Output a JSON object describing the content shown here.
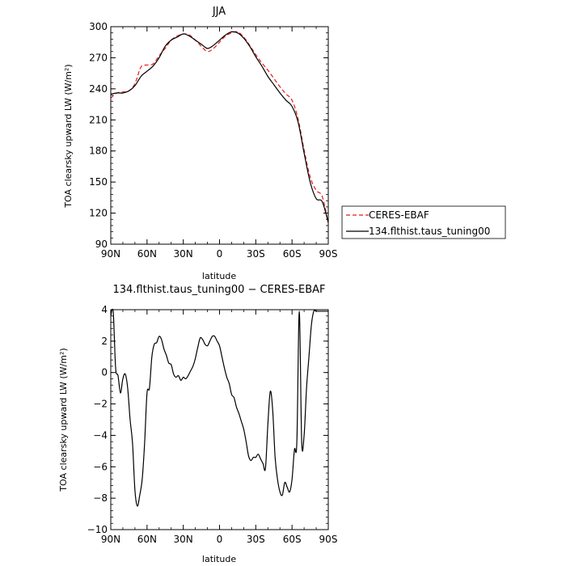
{
  "chart_data": [
    {
      "type": "line",
      "title": "JJA",
      "xlabel": "latitude",
      "ylabel": "TOA clearsky upward LW (W/m²)",
      "x_ticks": [
        {
          "lat": 90,
          "label": "90N"
        },
        {
          "lat": 60,
          "label": "60N"
        },
        {
          "lat": 30,
          "label": "30N"
        },
        {
          "lat": 0,
          "label": "0"
        },
        {
          "lat": -30,
          "label": "30S"
        },
        {
          "lat": -60,
          "label": "60S"
        },
        {
          "lat": -90,
          "label": "90S"
        }
      ],
      "y_ticks": [
        90,
        120,
        150,
        180,
        210,
        240,
        270,
        300
      ],
      "ylim": [
        90,
        300
      ],
      "xlim": [
        90,
        -90
      ],
      "legend": {
        "position": "right-outside"
      },
      "series": [
        {
          "name": "CERES-EBAF",
          "color": "#e8191c",
          "dash": "dashed",
          "lat": [
            90,
            85,
            80,
            75,
            70,
            65,
            60,
            55,
            50,
            45,
            40,
            35,
            30,
            25,
            20,
            15,
            10,
            5,
            0,
            -5,
            -10,
            -15,
            -20,
            -25,
            -30,
            -35,
            -40,
            -45,
            -50,
            -55,
            -60,
            -65,
            -70,
            -75,
            -80,
            -85,
            -90
          ],
          "values": [
            231,
            236,
            237,
            238,
            245,
            261,
            263,
            264,
            272,
            279,
            287,
            291,
            293,
            292,
            287,
            281,
            276,
            279,
            285,
            291,
            294,
            295,
            290,
            282,
            273,
            265,
            258,
            250,
            242,
            235,
            229,
            211,
            181,
            155,
            142,
            136,
            110
          ]
        },
        {
          "name": "134.flthist.taus_tuning00",
          "color": "#000000",
          "dash": "solid",
          "lat": [
            90,
            85,
            80,
            75,
            70,
            65,
            60,
            55,
            50,
            45,
            40,
            35,
            30,
            25,
            20,
            15,
            10,
            5,
            0,
            -5,
            -10,
            -15,
            -20,
            -25,
            -30,
            -35,
            -40,
            -45,
            -50,
            -55,
            -60,
            -65,
            -70,
            -75,
            -80,
            -85,
            -90
          ],
          "values": [
            235,
            236,
            236,
            238,
            243,
            252,
            257,
            262,
            270,
            281,
            287,
            290,
            293,
            291,
            287,
            283,
            279,
            282,
            287,
            292,
            295,
            294,
            289,
            281,
            271,
            262,
            252,
            244,
            236,
            229,
            223,
            208,
            178,
            150,
            134,
            131,
            111
          ]
        }
      ]
    },
    {
      "type": "line",
      "title": "134.flthist.taus_tuning00 − CERES-EBAF",
      "xlabel": "latitude",
      "ylabel": "TOA clearsky upward LW (W/m²)",
      "x_ticks": [
        {
          "lat": 90,
          "label": "90N"
        },
        {
          "lat": 60,
          "label": "60N"
        },
        {
          "lat": 30,
          "label": "30N"
        },
        {
          "lat": 0,
          "label": "0"
        },
        {
          "lat": -30,
          "label": "30S"
        },
        {
          "lat": -60,
          "label": "60S"
        },
        {
          "lat": -90,
          "label": "90S"
        }
      ],
      "y_ticks": [
        -10,
        -8,
        -6,
        -4,
        -2,
        0,
        2,
        4
      ],
      "ylim": [
        -10,
        4
      ],
      "xlim": [
        90,
        -90
      ],
      "series": [
        {
          "color": "#000000",
          "dash": "solid",
          "lat": [
            90,
            88,
            86,
            84,
            82,
            80,
            78,
            76,
            74,
            72,
            70,
            68,
            66,
            64,
            62,
            60,
            58,
            56,
            54,
            52,
            50,
            48,
            46,
            44,
            42,
            40,
            38,
            36,
            34,
            32,
            30,
            28,
            26,
            24,
            22,
            20,
            18,
            16,
            14,
            12,
            10,
            8,
            6,
            4,
            2,
            0,
            -2,
            -4,
            -6,
            -8,
            -10,
            -12,
            -14,
            -16,
            -18,
            -20,
            -22,
            -24,
            -26,
            -28,
            -30,
            -32,
            -34,
            -36,
            -38,
            -40,
            -42,
            -44,
            -46,
            -48,
            -50,
            -52,
            -54,
            -56,
            -58,
            -60,
            -62,
            -64,
            -66,
            -68,
            -70,
            -72,
            -74,
            -76,
            -78,
            -80,
            -82,
            -84,
            -86,
            -88,
            -90
          ],
          "values": [
            3.6,
            3.9,
            0.3,
            -0.2,
            -1.3,
            -0.4,
            -0.1,
            -1.0,
            -3.0,
            -4.5,
            -7.5,
            -8.5,
            -7.8,
            -6.8,
            -4.5,
            -1.3,
            -1.0,
            1.0,
            1.8,
            1.9,
            2.3,
            2.1,
            1.5,
            1.1,
            0.6,
            0.5,
            -0.1,
            -0.3,
            -0.2,
            -0.5,
            -0.3,
            -0.4,
            -0.2,
            0.1,
            0.4,
            0.9,
            1.6,
            2.2,
            2.1,
            1.8,
            1.7,
            2.0,
            2.3,
            2.3,
            2.0,
            1.7,
            1.0,
            0.3,
            -0.3,
            -0.7,
            -1.4,
            -1.6,
            -2.2,
            -2.6,
            -3.1,
            -3.6,
            -4.4,
            -5.3,
            -5.6,
            -5.4,
            -5.4,
            -5.2,
            -5.5,
            -5.8,
            -6.1,
            -3.3,
            -1.2,
            -2.4,
            -5.4,
            -6.8,
            -7.6,
            -7.8,
            -7.0,
            -7.3,
            -7.6,
            -6.8,
            -4.9,
            -4.4,
            3.9,
            -4.4,
            -4.0,
            -1.0,
            1.0,
            3.0,
            3.9,
            3.9,
            3.9,
            3.9,
            3.9,
            3.9,
            3.9
          ]
        }
      ]
    }
  ]
}
